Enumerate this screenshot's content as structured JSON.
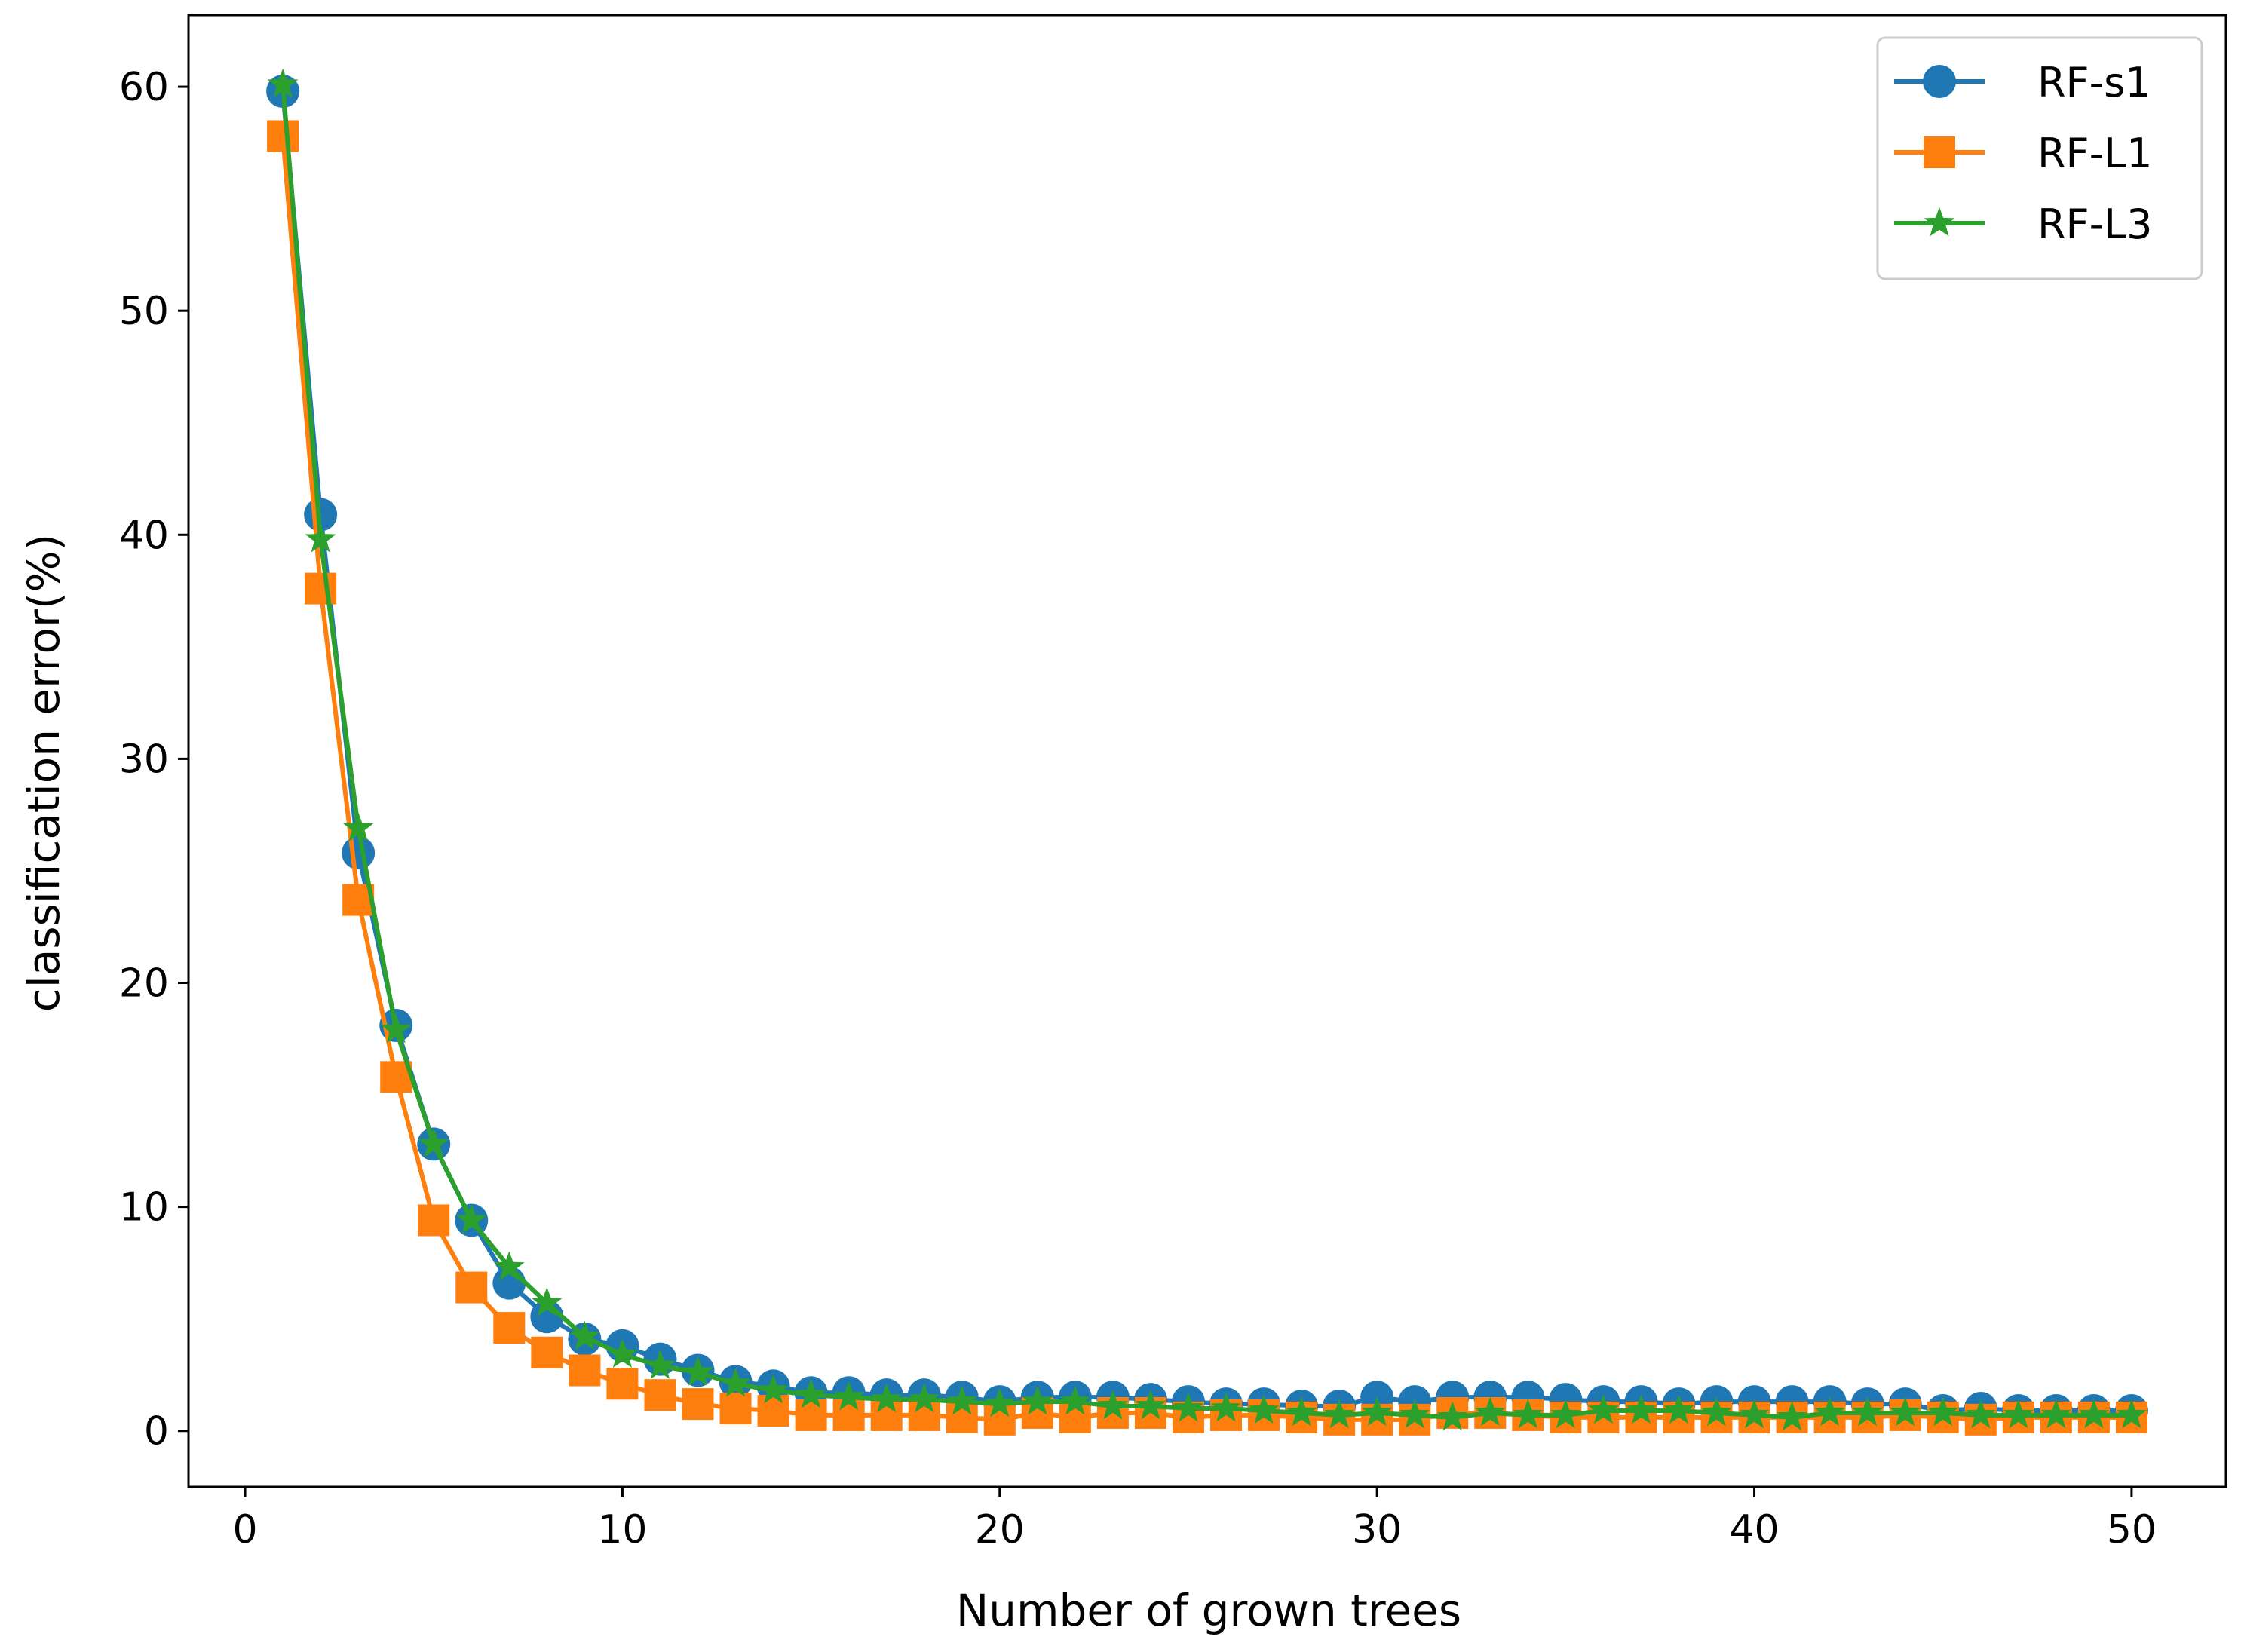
{
  "chart_data": {
    "type": "line",
    "title": "",
    "xlabel": "Number of grown trees",
    "ylabel": "classification error(%)",
    "xlim": [
      -1.5,
      52.5
    ],
    "ylim": [
      -2.5,
      63.2
    ],
    "xticks": [
      0,
      10,
      20,
      30,
      40,
      50
    ],
    "yticks": [
      0,
      10,
      20,
      30,
      40,
      50,
      60
    ],
    "x": [
      1,
      2,
      3,
      4,
      5,
      6,
      7,
      8,
      9,
      10,
      11,
      12,
      13,
      14,
      15,
      16,
      17,
      18,
      19,
      20,
      21,
      22,
      23,
      24,
      25,
      26,
      27,
      28,
      29,
      30,
      31,
      32,
      33,
      34,
      35,
      36,
      37,
      38,
      39,
      40,
      41,
      42,
      43,
      44,
      45,
      46,
      47,
      48,
      49,
      50
    ],
    "legend_position": "top-right",
    "grid": false,
    "series": [
      {
        "name": "RF-s1",
        "marker": "circle",
        "color": "#1f77b4",
        "values": [
          59.8,
          40.9,
          25.8,
          18.1,
          12.8,
          9.4,
          6.6,
          5.1,
          4.1,
          3.8,
          3.2,
          2.7,
          2.2,
          2.0,
          1.7,
          1.7,
          1.6,
          1.6,
          1.5,
          1.3,
          1.5,
          1.5,
          1.5,
          1.4,
          1.3,
          1.2,
          1.2,
          1.1,
          1.1,
          1.5,
          1.3,
          1.5,
          1.5,
          1.5,
          1.4,
          1.3,
          1.3,
          1.2,
          1.3,
          1.3,
          1.3,
          1.3,
          1.2,
          1.2,
          0.9,
          1.0,
          0.9,
          0.9,
          0.9,
          0.9
        ]
      },
      {
        "name": "RF-L1",
        "marker": "square",
        "color": "#ff7f0e",
        "values": [
          57.8,
          37.6,
          23.7,
          15.8,
          9.4,
          6.4,
          4.6,
          3.5,
          2.7,
          2.1,
          1.6,
          1.2,
          1.0,
          0.9,
          0.7,
          0.7,
          0.7,
          0.7,
          0.6,
          0.5,
          0.8,
          0.6,
          0.8,
          0.8,
          0.6,
          0.7,
          0.7,
          0.6,
          0.5,
          0.5,
          0.5,
          0.8,
          0.8,
          0.7,
          0.6,
          0.6,
          0.6,
          0.6,
          0.6,
          0.6,
          0.6,
          0.6,
          0.6,
          0.7,
          0.6,
          0.5,
          0.6,
          0.6,
          0.6,
          0.6
        ]
      },
      {
        "name": "RF-L3",
        "marker": "star",
        "color": "#2ca02c",
        "values": [
          60.1,
          39.8,
          26.9,
          17.9,
          12.8,
          9.4,
          7.3,
          5.7,
          4.2,
          3.4,
          2.9,
          2.6,
          2.1,
          1.8,
          1.6,
          1.5,
          1.4,
          1.4,
          1.3,
          1.2,
          1.3,
          1.3,
          1.1,
          1.1,
          1.0,
          1.0,
          0.9,
          0.8,
          0.7,
          0.8,
          0.7,
          0.6,
          0.8,
          0.7,
          0.7,
          0.9,
          0.9,
          0.9,
          0.8,
          0.7,
          0.6,
          0.8,
          0.8,
          0.8,
          0.8,
          0.7,
          0.7,
          0.7,
          0.7,
          0.7
        ]
      }
    ]
  }
}
